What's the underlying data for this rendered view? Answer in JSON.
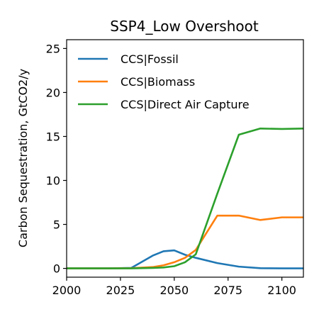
{
  "chart_data": {
    "type": "line",
    "title": "SSP4_Low Overshoot",
    "xlabel": "",
    "ylabel": "Carbon Sequestration, GtCO2/y",
    "xlim": [
      2000,
      2110
    ],
    "ylim": [
      -1,
      26
    ],
    "xticks": [
      2000,
      2025,
      2050,
      2075,
      2100
    ],
    "yticks": [
      0,
      5,
      10,
      15,
      20,
      25
    ],
    "legend_position": "top-left",
    "series": [
      {
        "name": "CCS|Fossil",
        "color": "#1f77b4",
        "x": [
          2000,
          2005,
          2010,
          2020,
          2030,
          2040,
          2045,
          2050,
          2055,
          2060,
          2070,
          2080,
          2090,
          2100,
          2110
        ],
        "y": [
          0,
          0,
          0,
          0,
          0.05,
          1.45,
          1.95,
          2.05,
          1.55,
          1.2,
          0.6,
          0.2,
          0.02,
          0,
          0
        ]
      },
      {
        "name": "CCS|Biomass",
        "color": "#ff7f0e",
        "x": [
          2000,
          2005,
          2010,
          2020,
          2030,
          2040,
          2045,
          2050,
          2055,
          2060,
          2070,
          2080,
          2090,
          2100,
          2110
        ],
        "y": [
          0,
          0,
          0,
          0,
          0.02,
          0.15,
          0.35,
          0.7,
          1.2,
          2.1,
          6.0,
          6.0,
          5.5,
          5.8,
          5.8
        ]
      },
      {
        "name": "CCS|Direct Air Capture",
        "color": "#2ca02c",
        "x": [
          2000,
          2005,
          2010,
          2020,
          2030,
          2040,
          2045,
          2050,
          2055,
          2060,
          2070,
          2080,
          2090,
          2100,
          2110
        ],
        "y": [
          0,
          0,
          0,
          0,
          0,
          0.05,
          0.1,
          0.25,
          0.7,
          1.6,
          8.5,
          15.2,
          15.9,
          15.85,
          15.9
        ]
      }
    ]
  }
}
